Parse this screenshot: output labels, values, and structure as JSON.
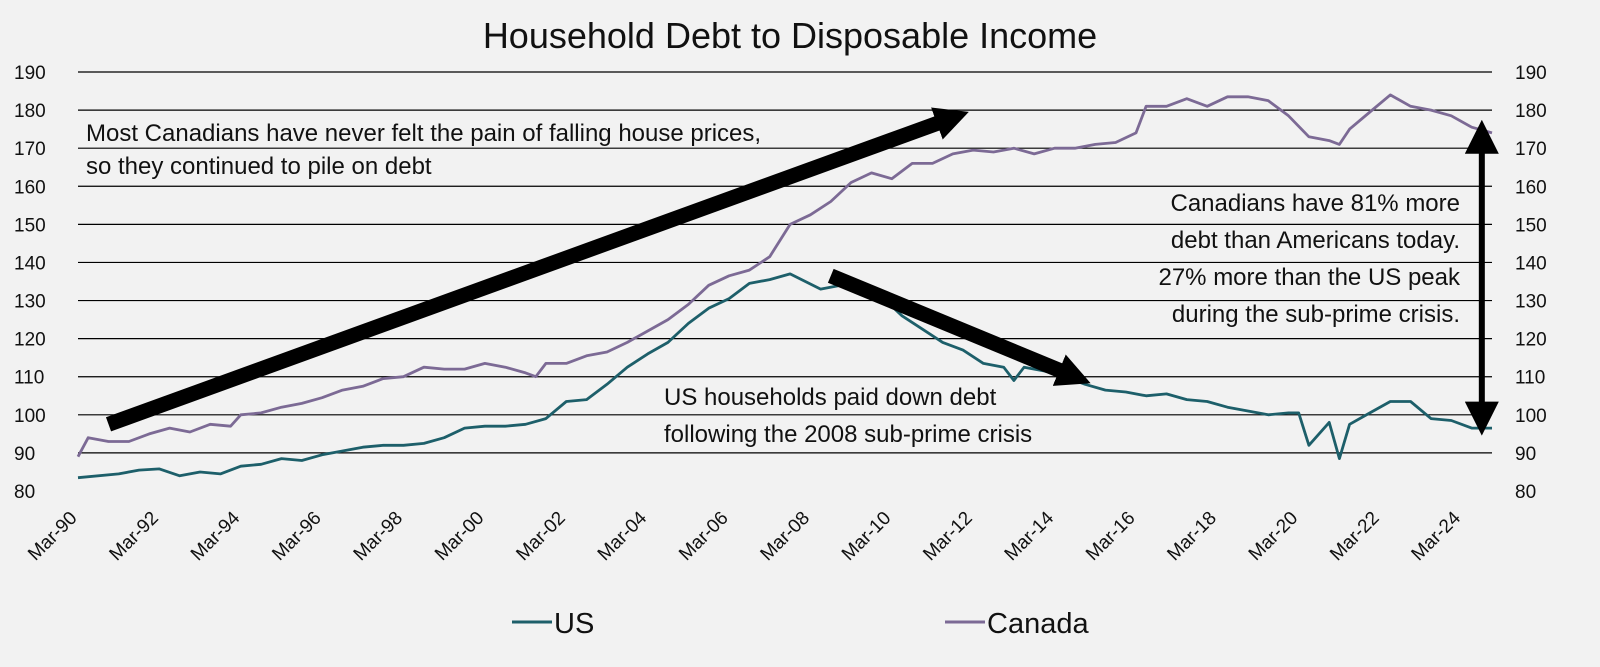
{
  "chart_data": {
    "type": "line",
    "title": "Household Debt to Disposable Income",
    "xlabel": "",
    "ylabel": "",
    "ylim": [
      80,
      190
    ],
    "y_ticks": [
      190,
      180,
      170,
      160,
      150,
      140,
      130,
      120,
      110,
      100,
      90,
      80
    ],
    "x_range": [
      "Mar-90",
      "Dec-24"
    ],
    "x_tick_labels": [
      "Mar-90",
      "Mar-92",
      "Mar-94",
      "Mar-96",
      "Mar-98",
      "Mar-00",
      "Mar-02",
      "Mar-04",
      "Mar-06",
      "Mar-08",
      "Mar-10",
      "Mar-12",
      "Mar-14",
      "Mar-16",
      "Mar-18",
      "Mar-20",
      "Mar-22",
      "Mar-24"
    ],
    "grid": "horizontal",
    "axes": "left and right y-axes",
    "legend_position": "bottom",
    "series": [
      {
        "name": "US",
        "color": "#1d5f6a",
        "points": [
          [
            "Mar-90",
            83.5
          ],
          [
            "Mar-91",
            84.5
          ],
          [
            "Sep-91",
            85.5
          ],
          [
            "Mar-92",
            85.8
          ],
          [
            "Sep-92",
            84
          ],
          [
            "Mar-93",
            85
          ],
          [
            "Sep-93",
            84.5
          ],
          [
            "Mar-94",
            86.5
          ],
          [
            "Sep-94",
            87
          ],
          [
            "Mar-95",
            88.5
          ],
          [
            "Sep-95",
            88
          ],
          [
            "Mar-96",
            89.5
          ],
          [
            "Sep-96",
            90.5
          ],
          [
            "Mar-97",
            91.5
          ],
          [
            "Sep-97",
            92
          ],
          [
            "Mar-98",
            92
          ],
          [
            "Sep-98",
            92.5
          ],
          [
            "Mar-99",
            94
          ],
          [
            "Sep-99",
            96.5
          ],
          [
            "Mar-00",
            97
          ],
          [
            "Sep-00",
            97
          ],
          [
            "Mar-01",
            97.5
          ],
          [
            "Sep-01",
            99
          ],
          [
            "Mar-02",
            103.5
          ],
          [
            "Sep-02",
            104
          ],
          [
            "Mar-03",
            108
          ],
          [
            "Sep-03",
            112.5
          ],
          [
            "Mar-04",
            116
          ],
          [
            "Sep-04",
            119
          ],
          [
            "Mar-05",
            124
          ],
          [
            "Sep-05",
            128
          ],
          [
            "Mar-06",
            130.5
          ],
          [
            "Sep-06",
            134.5
          ],
          [
            "Mar-07",
            135.5
          ],
          [
            "Sep-07",
            137
          ],
          [
            "Jun-08",
            133
          ],
          [
            "Dec-08",
            134
          ],
          [
            "Jun-09",
            132.5
          ],
          [
            "Dec-09",
            131
          ],
          [
            "Jun-10",
            126
          ],
          [
            "Dec-10",
            122.5
          ],
          [
            "Jun-11",
            119
          ],
          [
            "Dec-11",
            117
          ],
          [
            "Jun-12",
            113.5
          ],
          [
            "Dec-12",
            112.5
          ],
          [
            "Mar-13",
            109
          ],
          [
            "Jun-13",
            112.5
          ],
          [
            "Dec-13",
            111.5
          ],
          [
            "Jun-14",
            110
          ],
          [
            "Dec-14",
            108
          ],
          [
            "Jun-15",
            106.5
          ],
          [
            "Dec-15",
            106
          ],
          [
            "Jun-16",
            105
          ],
          [
            "Dec-16",
            105.5
          ],
          [
            "Jun-17",
            104
          ],
          [
            "Dec-17",
            103.5
          ],
          [
            "Jun-18",
            102
          ],
          [
            "Dec-18",
            101
          ],
          [
            "Jun-19",
            100
          ],
          [
            "Dec-19",
            100.5
          ],
          [
            "Mar-20",
            100.5
          ],
          [
            "Jun-20",
            92
          ],
          [
            "Dec-20",
            98
          ],
          [
            "Mar-21",
            88.5
          ],
          [
            "Jun-21",
            97.5
          ],
          [
            "Dec-21",
            100.5
          ],
          [
            "Jun-22",
            103.5
          ],
          [
            "Dec-22",
            103.5
          ],
          [
            "Jun-23",
            99
          ],
          [
            "Dec-23",
            98.5
          ],
          [
            "Jun-24",
            96.5
          ],
          [
            "Dec-24",
            96.5
          ]
        ]
      },
      {
        "name": "Canada",
        "color": "#7c6a95",
        "points": [
          [
            "Mar-90",
            89
          ],
          [
            "Jun-90",
            94
          ],
          [
            "Dec-90",
            93
          ],
          [
            "Jun-91",
            93
          ],
          [
            "Dec-91",
            95
          ],
          [
            "Jun-92",
            96.5
          ],
          [
            "Dec-92",
            95.5
          ],
          [
            "Jun-93",
            97.5
          ],
          [
            "Dec-93",
            97
          ],
          [
            "Mar-94",
            100
          ],
          [
            "Sep-94",
            100.5
          ],
          [
            "Mar-95",
            102
          ],
          [
            "Sep-95",
            103
          ],
          [
            "Mar-96",
            104.5
          ],
          [
            "Sep-96",
            106.5
          ],
          [
            "Mar-97",
            107.5
          ],
          [
            "Sep-97",
            109.5
          ],
          [
            "Mar-98",
            110
          ],
          [
            "Sep-98",
            112.5
          ],
          [
            "Mar-99",
            112
          ],
          [
            "Sep-99",
            112
          ],
          [
            "Mar-00",
            113.5
          ],
          [
            "Sep-00",
            112.5
          ],
          [
            "Mar-01",
            111
          ],
          [
            "Jun-01",
            110
          ],
          [
            "Sep-01",
            113.5
          ],
          [
            "Mar-02",
            113.5
          ],
          [
            "Sep-02",
            115.5
          ],
          [
            "Mar-03",
            116.5
          ],
          [
            "Sep-03",
            119
          ],
          [
            "Mar-04",
            122
          ],
          [
            "Sep-04",
            125
          ],
          [
            "Mar-05",
            129
          ],
          [
            "Sep-05",
            134
          ],
          [
            "Mar-06",
            136.5
          ],
          [
            "Sep-06",
            138
          ],
          [
            "Mar-07",
            141.5
          ],
          [
            "Sep-07",
            150
          ],
          [
            "Mar-08",
            152.5
          ],
          [
            "Sep-08",
            156
          ],
          [
            "Mar-09",
            161
          ],
          [
            "Sep-09",
            163.5
          ],
          [
            "Mar-10",
            162
          ],
          [
            "Sep-10",
            166
          ],
          [
            "Mar-11",
            166
          ],
          [
            "Sep-11",
            168.5
          ],
          [
            "Mar-12",
            169.5
          ],
          [
            "Sep-12",
            169
          ],
          [
            "Mar-13",
            170
          ],
          [
            "Sep-13",
            168.5
          ],
          [
            "Mar-14",
            170
          ],
          [
            "Sep-14",
            170
          ],
          [
            "Mar-15",
            171
          ],
          [
            "Sep-15",
            171.5
          ],
          [
            "Mar-16",
            174
          ],
          [
            "Jun-16",
            181
          ],
          [
            "Dec-16",
            181
          ],
          [
            "Jun-17",
            183
          ],
          [
            "Dec-17",
            181
          ],
          [
            "Jun-18",
            183.5
          ],
          [
            "Dec-18",
            183.5
          ],
          [
            "Jun-19",
            182.5
          ],
          [
            "Dec-19",
            178.5
          ],
          [
            "Jun-20",
            173
          ],
          [
            "Dec-20",
            172
          ],
          [
            "Mar-21",
            171
          ],
          [
            "Jun-21",
            175
          ],
          [
            "Dec-21",
            179.5
          ],
          [
            "Jun-22",
            184
          ],
          [
            "Dec-22",
            181
          ],
          [
            "Jun-23",
            180
          ],
          [
            "Dec-23",
            178.5
          ],
          [
            "Jun-24",
            175.5
          ],
          [
            "Dec-24",
            174
          ]
        ]
      }
    ],
    "annotations": [
      {
        "id": "canada-debt-note",
        "lines": [
          "Most Canadians have never felt the pain of falling house prices,",
          "so they continued to pile on debt"
        ],
        "arrow_from": [
          "Dec-90",
          97.5
        ],
        "arrow_to": [
          "Sep-11",
          178
        ]
      },
      {
        "id": "us-paydown-note",
        "lines": [
          "US households paid down debt",
          "following the 2008 sub-prime crisis"
        ],
        "arrow_from": [
          "Sep-08",
          136.5
        ],
        "arrow_to": [
          "Sep-14",
          110
        ]
      },
      {
        "id": "gap-note",
        "lines": [
          "Canadians have 81% more",
          "debt than Americans today.",
          "27% more than the US peak",
          "during the sub-prime crisis."
        ],
        "arrow_from": [
          "Sep-24",
          173
        ],
        "arrow_to": [
          "Sep-24",
          99
        ]
      }
    ]
  }
}
